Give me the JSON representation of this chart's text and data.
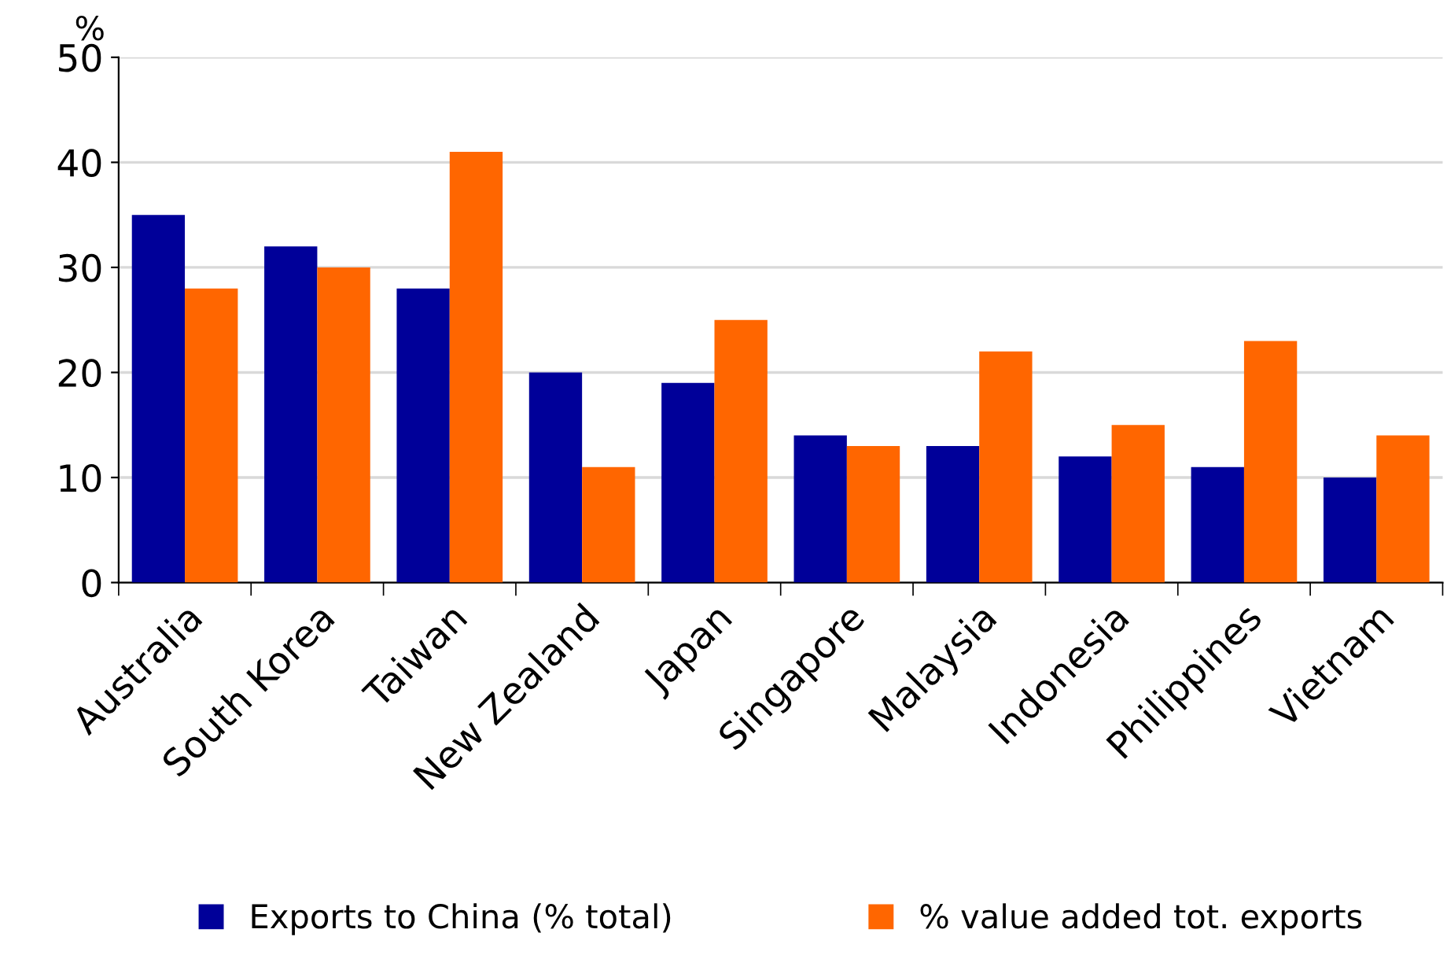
{
  "chart_data": {
    "type": "bar",
    "ylabel": "%",
    "categories": [
      "Australia",
      "South Korea",
      "Taiwan",
      "New Zealand",
      "Japan",
      "Singapore",
      "Malaysia",
      "Indonesia",
      "Philippines",
      "Vietnam"
    ],
    "series": [
      {
        "name": "Exports to China (% total)",
        "color": "#000099",
        "values": [
          35,
          32,
          28,
          20,
          19,
          14,
          13,
          12,
          11,
          10
        ]
      },
      {
        "name": "% value added tot. exports",
        "color": "#ff6600",
        "values": [
          28,
          30,
          41,
          11,
          25,
          13,
          22,
          15,
          23,
          14
        ]
      }
    ],
    "ylim": [
      0,
      50
    ],
    "yticks": [
      0,
      10,
      20,
      30,
      40,
      50
    ],
    "grid": "y",
    "legend": "bottom"
  }
}
